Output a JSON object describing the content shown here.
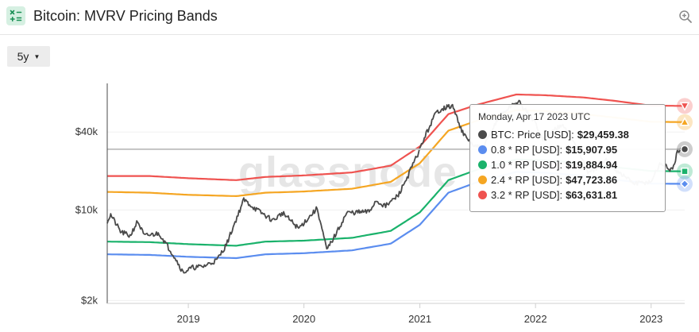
{
  "header": {
    "title": "Bitcoin: MVRV Pricing Bands",
    "app_icon": "calculator-icon",
    "zoom_icon": "zoom-in-icon"
  },
  "controls": {
    "range_value": "5y"
  },
  "watermark": "glassnode",
  "tooltip": {
    "date": "Monday, Apr 17 2023 UTC",
    "rows": [
      {
        "label": "BTC: Price [USD]:",
        "value": "$29,459.38",
        "color": "#4a4a4a"
      },
      {
        "label": "0.8 * RP [USD]:",
        "value": "$15,907.95",
        "color": "#5b8def"
      },
      {
        "label": "1.0 * RP [USD]:",
        "value": "$19,884.94",
        "color": "#1ab26b"
      },
      {
        "label": "2.4 * RP [USD]:",
        "value": "$47,723.86",
        "color": "#f5a623"
      },
      {
        "label": "3.2 * RP [USD]:",
        "value": "$63,631.81",
        "color": "#ef5350"
      }
    ]
  },
  "chart_data": {
    "type": "line",
    "y_scale": "log",
    "ylim": [
      1900,
      95000
    ],
    "y_ticks": [
      {
        "label": "$2k",
        "value": 2000
      },
      {
        "label": "$10k",
        "value": 10000
      },
      {
        "label": "$40k",
        "value": 40000
      }
    ],
    "x_ticks": [
      "2019",
      "2020",
      "2021",
      "2022",
      "2023"
    ],
    "x_range": [
      "2018-04-20",
      "2023-04-17"
    ],
    "crosshair_y": 29459.38,
    "series": [
      {
        "name": "3.2 * RP [USD]",
        "color": "#ef5350",
        "points": [
          [
            "2018-04-20",
            18300
          ],
          [
            "2018-09-01",
            18300
          ],
          [
            "2019-01-01",
            17600
          ],
          [
            "2019-06-01",
            17000
          ],
          [
            "2019-09-01",
            18000
          ],
          [
            "2020-01-01",
            18500
          ],
          [
            "2020-06-01",
            19500
          ],
          [
            "2020-10-01",
            22000
          ],
          [
            "2021-01-01",
            31000
          ],
          [
            "2021-04-01",
            55000
          ],
          [
            "2021-07-01",
            65000
          ],
          [
            "2021-11-01",
            78000
          ],
          [
            "2022-02-01",
            77000
          ],
          [
            "2022-06-01",
            74000
          ],
          [
            "2022-09-01",
            70000
          ],
          [
            "2023-01-01",
            64000
          ],
          [
            "2023-04-17",
            63631.81
          ]
        ]
      },
      {
        "name": "2.4 * RP [USD]",
        "color": "#f5a623",
        "points": [
          [
            "2018-04-20",
            13800
          ],
          [
            "2018-09-01",
            13600
          ],
          [
            "2019-01-01",
            13100
          ],
          [
            "2019-06-01",
            12800
          ],
          [
            "2019-09-01",
            13600
          ],
          [
            "2020-01-01",
            13900
          ],
          [
            "2020-06-01",
            14600
          ],
          [
            "2020-10-01",
            16500
          ],
          [
            "2021-01-01",
            23000
          ],
          [
            "2021-04-01",
            41000
          ],
          [
            "2021-07-01",
            49000
          ],
          [
            "2021-11-01",
            59000
          ],
          [
            "2022-02-01",
            58000
          ],
          [
            "2022-06-01",
            55000
          ],
          [
            "2022-09-01",
            52000
          ],
          [
            "2023-01-01",
            48000
          ],
          [
            "2023-04-17",
            47723.86
          ]
        ]
      },
      {
        "name": "1.0 * RP [USD]",
        "color": "#1ab26b",
        "points": [
          [
            "2018-04-20",
            5700
          ],
          [
            "2018-09-01",
            5650
          ],
          [
            "2019-01-01",
            5450
          ],
          [
            "2019-06-01",
            5300
          ],
          [
            "2019-09-01",
            5700
          ],
          [
            "2020-01-01",
            5800
          ],
          [
            "2020-06-01",
            6100
          ],
          [
            "2020-10-01",
            6900
          ],
          [
            "2021-01-01",
            9600
          ],
          [
            "2021-04-01",
            17000
          ],
          [
            "2021-07-01",
            20500
          ],
          [
            "2021-11-01",
            24600
          ],
          [
            "2022-02-01",
            24200
          ],
          [
            "2022-06-01",
            23000
          ],
          [
            "2022-09-01",
            21500
          ],
          [
            "2023-01-01",
            20000
          ],
          [
            "2023-04-17",
            19884.94
          ]
        ]
      },
      {
        "name": "0.8 * RP [USD]",
        "color": "#5b8def",
        "points": [
          [
            "2018-04-20",
            4550
          ],
          [
            "2018-09-01",
            4500
          ],
          [
            "2019-01-01",
            4350
          ],
          [
            "2019-06-01",
            4250
          ],
          [
            "2019-09-01",
            4550
          ],
          [
            "2020-01-01",
            4640
          ],
          [
            "2020-06-01",
            4880
          ],
          [
            "2020-10-01",
            5500
          ],
          [
            "2021-01-01",
            7700
          ],
          [
            "2021-04-01",
            13600
          ],
          [
            "2021-07-01",
            16400
          ],
          [
            "2021-11-01",
            19700
          ],
          [
            "2022-02-01",
            19400
          ],
          [
            "2022-06-01",
            18400
          ],
          [
            "2022-09-01",
            17200
          ],
          [
            "2023-01-01",
            16000
          ],
          [
            "2023-04-17",
            15907.95
          ]
        ]
      },
      {
        "name": "BTC: Price [USD]",
        "color": "#4a4a4a",
        "points": [
          [
            "2018-04-20",
            8200
          ],
          [
            "2018-05-01",
            9200
          ],
          [
            "2018-06-01",
            6800
          ],
          [
            "2018-07-01",
            6300
          ],
          [
            "2018-07-25",
            8200
          ],
          [
            "2018-08-15",
            6300
          ],
          [
            "2018-10-01",
            6600
          ],
          [
            "2018-11-20",
            4300
          ],
          [
            "2018-12-15",
            3300
          ],
          [
            "2019-01-15",
            3600
          ],
          [
            "2019-02-15",
            3650
          ],
          [
            "2019-04-01",
            4100
          ],
          [
            "2019-05-01",
            5400
          ],
          [
            "2019-06-25",
            12000
          ],
          [
            "2019-08-01",
            10200
          ],
          [
            "2019-09-25",
            8300
          ],
          [
            "2019-10-26",
            9500
          ],
          [
            "2019-12-15",
            7200
          ],
          [
            "2020-02-12",
            10300
          ],
          [
            "2020-03-13",
            4900
          ],
          [
            "2020-04-15",
            6800
          ],
          [
            "2020-05-15",
            9500
          ],
          [
            "2020-07-25",
            9700
          ],
          [
            "2020-08-15",
            11800
          ],
          [
            "2020-09-15",
            10700
          ],
          [
            "2020-10-25",
            13000
          ],
          [
            "2020-11-25",
            18500
          ],
          [
            "2020-12-31",
            29000
          ],
          [
            "2021-01-15",
            36000
          ],
          [
            "2021-02-20",
            56000
          ],
          [
            "2021-03-13",
            61000
          ],
          [
            "2021-04-14",
            63500
          ],
          [
            "2021-05-19",
            38000
          ],
          [
            "2021-06-22",
            31000
          ],
          [
            "2021-07-20",
            30000
          ],
          [
            "2021-09-06",
            52000
          ],
          [
            "2021-10-20",
            65000
          ],
          [
            "2021-11-10",
            68000
          ],
          [
            "2021-12-31",
            47000
          ],
          [
            "2022-01-24",
            35000
          ],
          [
            "2022-03-28",
            47000
          ],
          [
            "2022-05-10",
            31000
          ],
          [
            "2022-06-18",
            19000
          ],
          [
            "2022-08-15",
            24400
          ],
          [
            "2022-09-15",
            20000
          ],
          [
            "2022-11-09",
            16000
          ],
          [
            "2022-12-31",
            16500
          ],
          [
            "2023-01-31",
            23100
          ],
          [
            "2023-03-10",
            20000
          ],
          [
            "2023-03-25",
            28000
          ],
          [
            "2023-04-17",
            29459.38
          ]
        ]
      }
    ]
  }
}
